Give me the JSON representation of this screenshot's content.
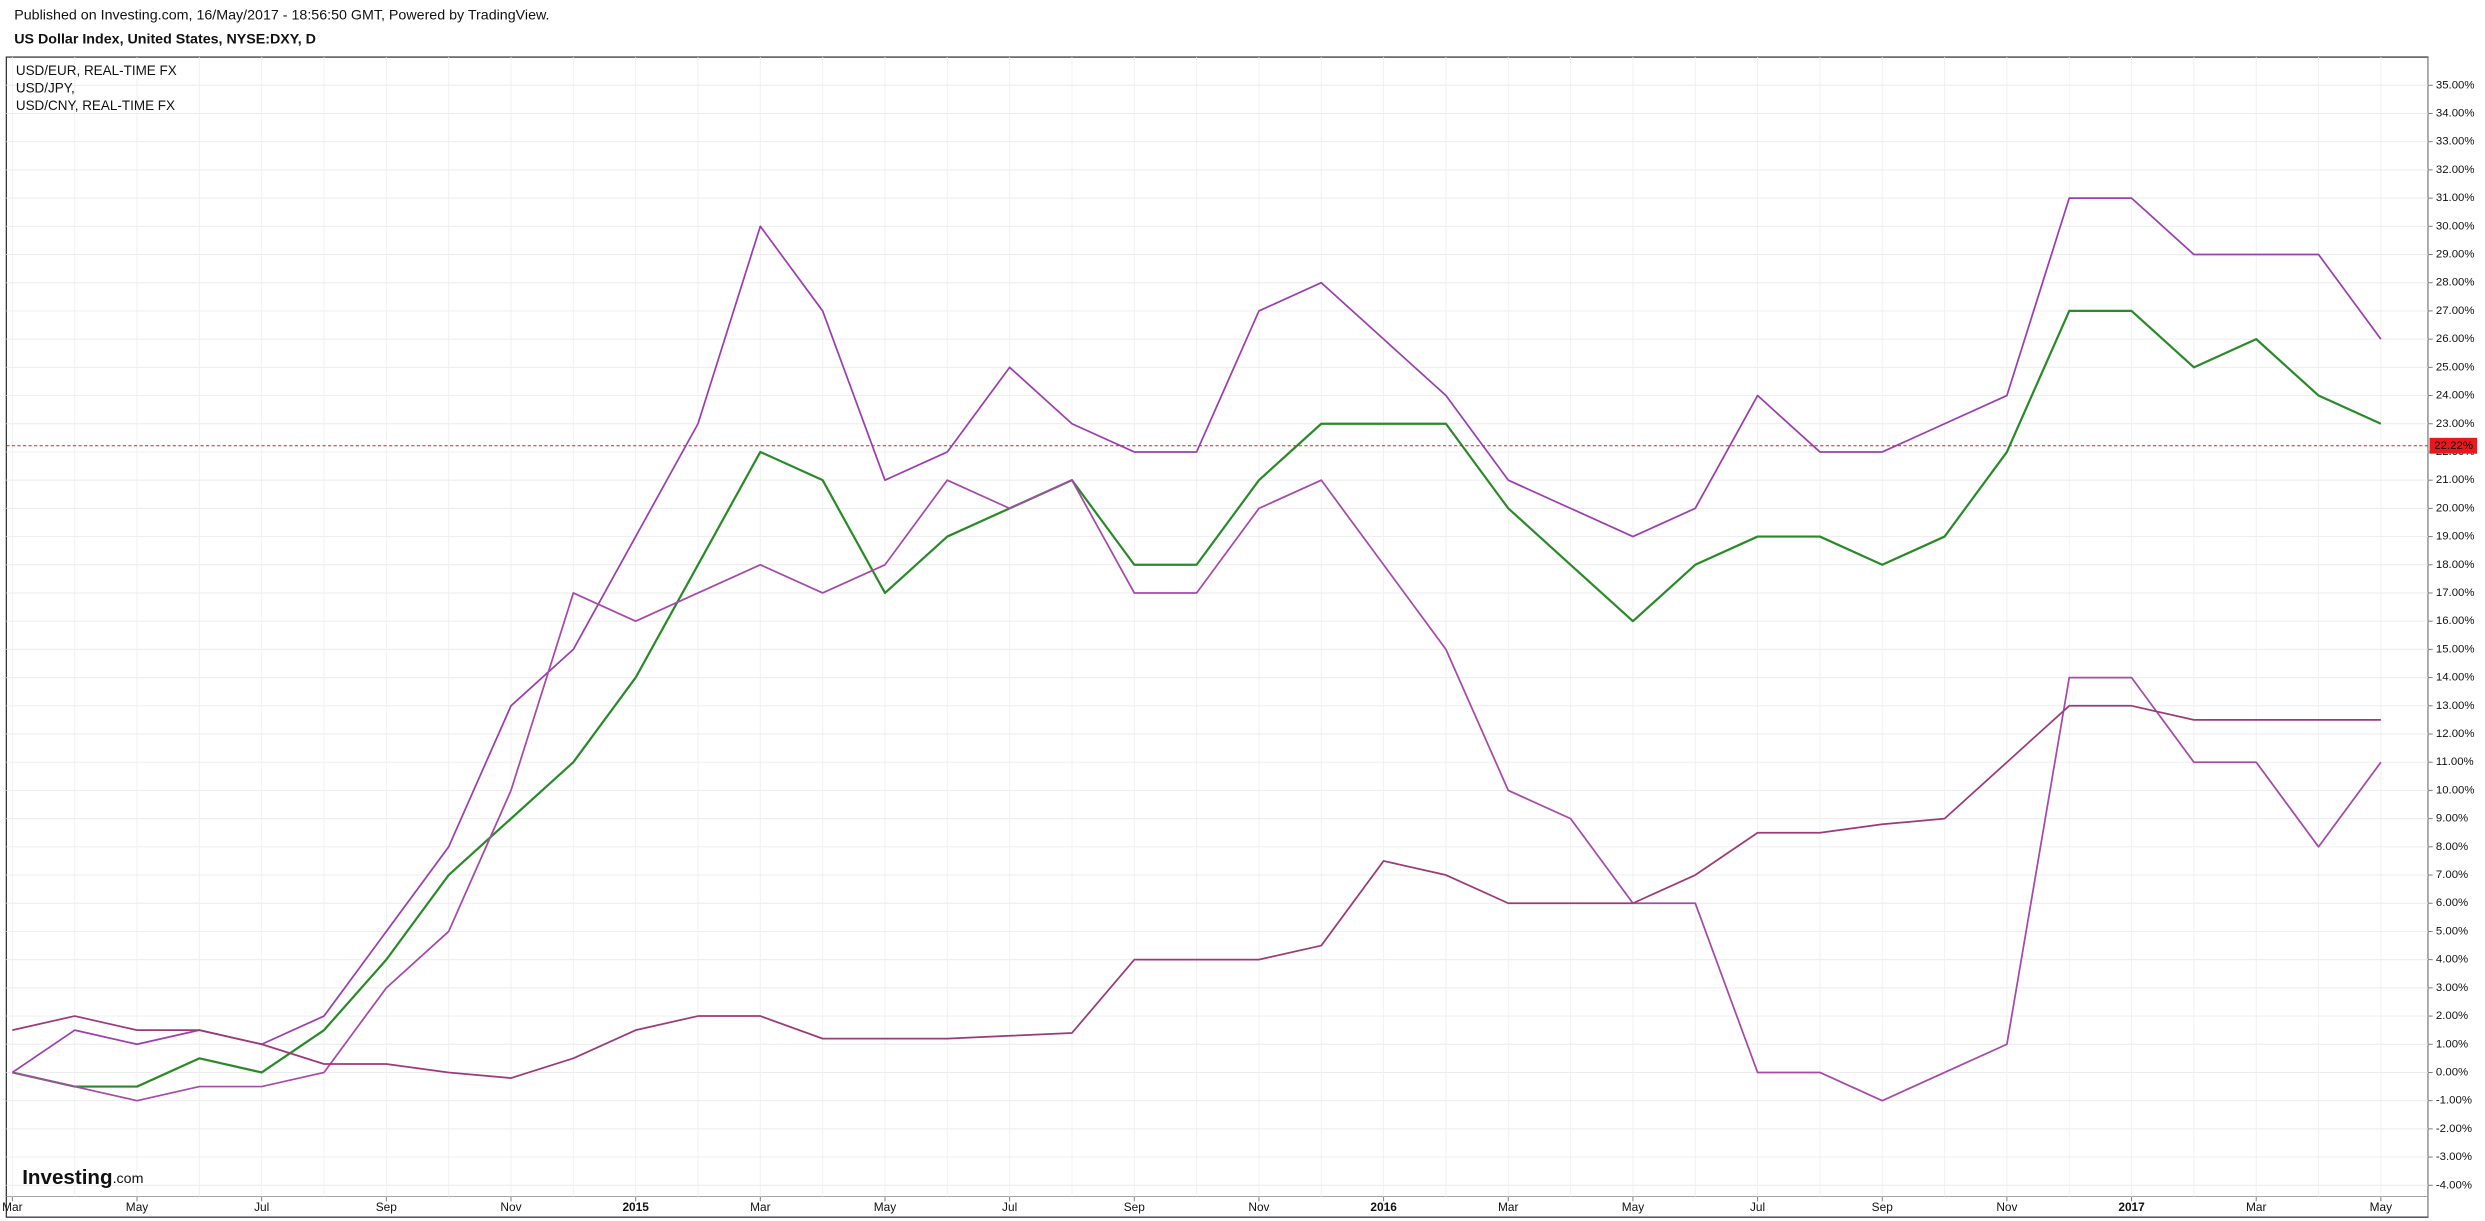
{
  "chart_data": {
    "type": "line",
    "subtitle": "Published on Investing.com, 16/May/2017 - 18:56:50 GMT, Powered by TradingView.",
    "title": "US Dollar Index, United States, NYSE:DXY, D",
    "categories": [
      "Mar",
      null,
      "May",
      null,
      "Jul",
      null,
      "Sep",
      null,
      "Nov",
      null,
      "2015",
      null,
      "Mar",
      null,
      "May",
      null,
      "Jul",
      null,
      "Sep",
      null,
      "Nov",
      null,
      "2016",
      null,
      "Mar",
      null,
      "May",
      null,
      "Jul",
      null,
      "Sep",
      null,
      "Nov",
      null,
      "2017",
      null,
      "Mar",
      null,
      "May"
    ],
    "series": [
      {
        "color": "#2a8a2a",
        "values": [
          0,
          -0.5,
          -0.5,
          0.5,
          0,
          1.5,
          4,
          7,
          9,
          11,
          14,
          18,
          22,
          21,
          17,
          19,
          20,
          21,
          18,
          18,
          21,
          23,
          23,
          23,
          20,
          18,
          16,
          18,
          19,
          19,
          18,
          19,
          22,
          27,
          27,
          25,
          26,
          24,
          23
        ]
      },
      {
        "name": "USD/EUR, REAL-TIME FX",
        "color": "#9b3fb0",
        "values": [
          0,
          1.5,
          1,
          1.5,
          1,
          2,
          5,
          8,
          13,
          15,
          19,
          23,
          30,
          27,
          21,
          22,
          25,
          23,
          22,
          22,
          27,
          28,
          26,
          24,
          21,
          20,
          19,
          20,
          24,
          22,
          22,
          23,
          24,
          31,
          31,
          29,
          29,
          29,
          26
        ]
      },
      {
        "name": "USD/JPY,",
        "color": "#a54aa8",
        "values": [
          0,
          -0.5,
          -1,
          -0.5,
          -0.5,
          0,
          3,
          5,
          10,
          17,
          16,
          17,
          18,
          17,
          18,
          21,
          20,
          21,
          17,
          17,
          20,
          21,
          18,
          15,
          10,
          9,
          6,
          6,
          0,
          0,
          -1,
          0,
          1,
          14,
          14,
          11,
          11,
          8,
          11
        ]
      },
      {
        "name": "USD/CNY, REAL-TIME FX",
        "color": "#9c3a78",
        "values": [
          1.5,
          2,
          1.5,
          1.5,
          1,
          0.3,
          0.3,
          0,
          -0.2,
          0.5,
          1.5,
          2,
          2,
          1.2,
          1.2,
          1.2,
          1.3,
          1.4,
          4,
          4,
          4,
          4.5,
          7.5,
          7,
          6,
          6,
          6,
          7,
          8.5,
          8.5,
          8.8,
          9,
          11,
          13,
          13,
          12.5,
          12.5,
          12.5,
          12.5
        ]
      }
    ],
    "ylim": [
      -4.4,
      36
    ],
    "yticks": [
      {
        "value": -4,
        "label": "-4.00%"
      },
      {
        "value": -3,
        "label": "-3.00%"
      },
      {
        "value": -2,
        "label": "-2.00%"
      },
      {
        "value": -1,
        "label": "-1.00%"
      },
      {
        "value": 0,
        "label": "0.00%"
      },
      {
        "value": 1,
        "label": "1.00%"
      },
      {
        "value": 2,
        "label": "2.00%"
      },
      {
        "value": 3,
        "label": "3.00%"
      },
      {
        "value": 4,
        "label": "4.00%"
      },
      {
        "value": 5,
        "label": "5.00%"
      },
      {
        "value": 6,
        "label": "6.00%"
      },
      {
        "value": 7,
        "label": "7.00%"
      },
      {
        "value": 8,
        "label": "8.00%"
      },
      {
        "value": 9,
        "label": "9.00%"
      },
      {
        "value": 10,
        "label": "10.00%"
      },
      {
        "value": 11,
        "label": "11.00%"
      },
      {
        "value": 12,
        "label": "12.00%"
      },
      {
        "value": 13,
        "label": "13.00%"
      },
      {
        "value": 14,
        "label": "14.00%"
      },
      {
        "value": 15,
        "label": "15.00%"
      },
      {
        "value": 16,
        "label": "16.00%"
      },
      {
        "value": 17,
        "label": "17.00%"
      },
      {
        "value": 18,
        "label": "18.00%"
      },
      {
        "value": 19,
        "label": "19.00%"
      },
      {
        "value": 20,
        "label": "20.00%"
      },
      {
        "value": 21,
        "label": "21.00%"
      },
      {
        "value": 22,
        "label": "22.00%"
      },
      {
        "value": 23,
        "label": "23.00%"
      },
      {
        "value": 24,
        "label": "24.00%"
      },
      {
        "value": 25,
        "label": "25.00%"
      },
      {
        "value": 26,
        "label": "26.00%"
      },
      {
        "value": 27,
        "label": "27.00%"
      },
      {
        "value": 28,
        "label": "28.00%"
      },
      {
        "value": 29,
        "label": "29.00%"
      },
      {
        "value": 30,
        "label": "30.00%"
      },
      {
        "value": 31,
        "label": "31.00%"
      },
      {
        "value": 32,
        "label": "32.00%"
      },
      {
        "value": 33,
        "label": "33.00%"
      },
      {
        "value": 34,
        "label": "34.00%"
      },
      {
        "value": 35,
        "label": "35.00%"
      }
    ],
    "grid": true,
    "last_value": {
      "value": 22.22,
      "label": "22.22%",
      "color": "#e8191c"
    },
    "logo": {
      "name": "Investing",
      "suffix": ".com"
    }
  }
}
